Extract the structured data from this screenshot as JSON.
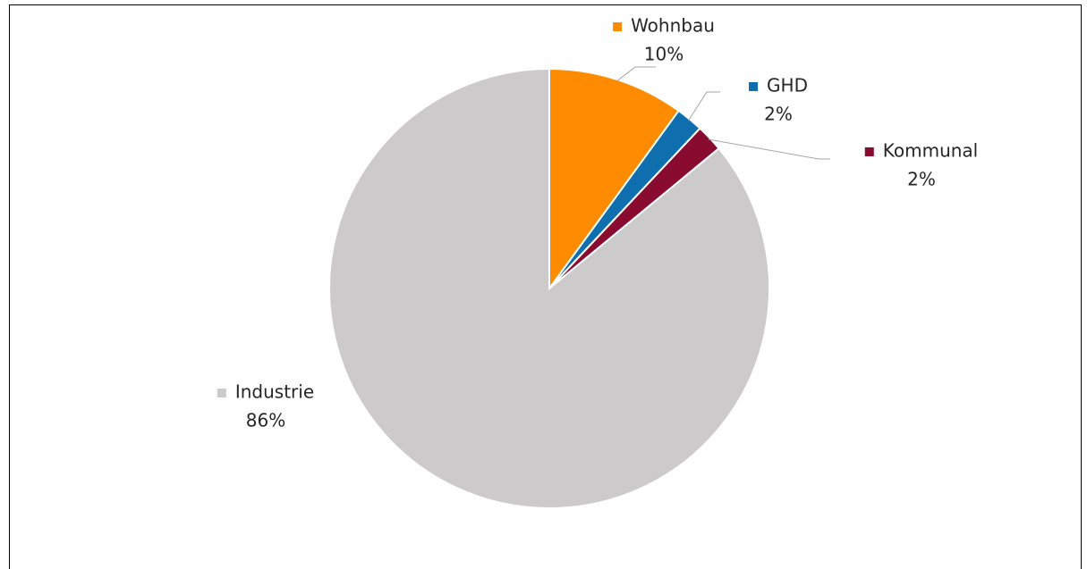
{
  "chart_data": {
    "type": "pie",
    "categories": [
      "Wohnbau",
      "GHD",
      "Kommunal",
      "Industrie"
    ],
    "values": [
      10,
      2,
      2,
      86
    ],
    "value_labels": [
      "10%",
      "2%",
      "2%",
      "86%"
    ],
    "colors": [
      "#ff8c00",
      "#0f6ead",
      "#8a0b30",
      "#cccaca"
    ]
  }
}
